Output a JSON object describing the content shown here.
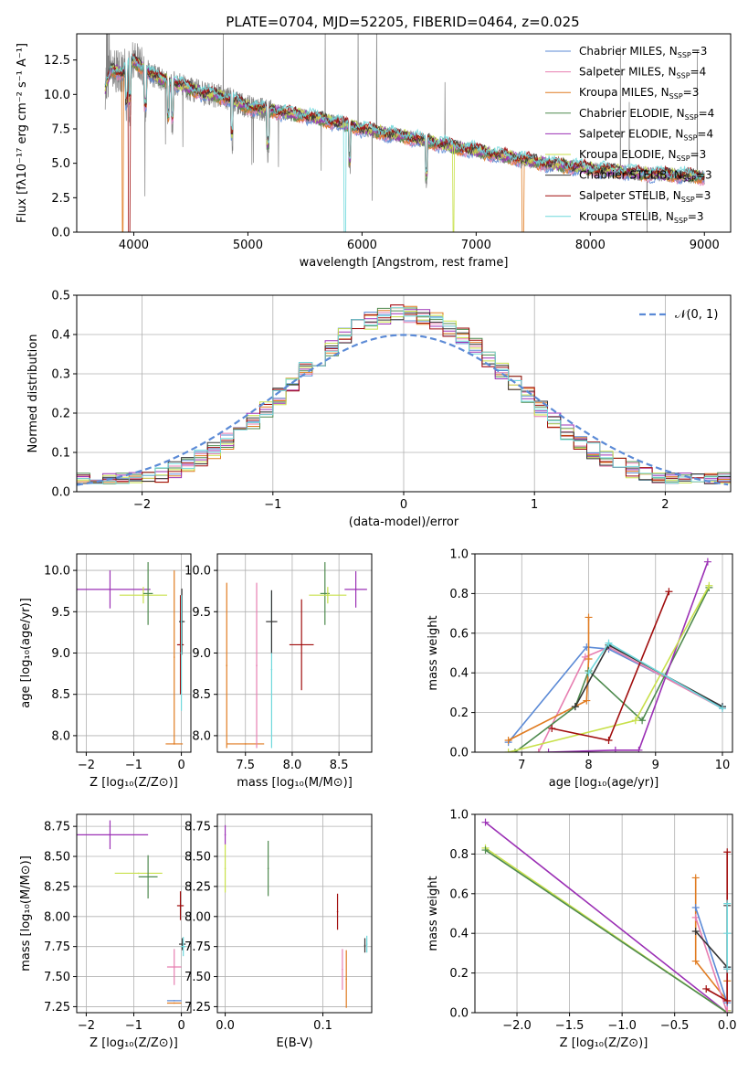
{
  "figure": {
    "title": "PLATE=0704, MJD=52205, FIBERID=0464, z=0.025"
  },
  "series_styles": [
    {
      "name": "Chabrier MILES, N$_{SSP}$=3",
      "color": "#5b8ad6"
    },
    {
      "name": "Salpeter MILES, N$_{SSP}$=4",
      "color": "#e77fb1"
    },
    {
      "name": "Kroupa MILES, N$_{SSP}$=3",
      "color": "#e07b20"
    },
    {
      "name": "Chabrier ELODIE, N$_{SSP}$=4",
      "color": "#4e8a4e"
    },
    {
      "name": "Salpeter ELODIE, N$_{SSP}$=4",
      "color": "#9b30b5"
    },
    {
      "name": "Kroupa ELODIE, N$_{SSP}$=3",
      "color": "#c8e04a"
    },
    {
      "name": "Chabrier STELIB, N$_{SSP}$=3",
      "color": "#333333"
    },
    {
      "name": "Salpeter STELIB, N$_{SSP}$=3",
      "color": "#a00d0d"
    },
    {
      "name": "Kroupa STELIB, N$_{SSP}$=3",
      "color": "#6fd8dc"
    }
  ],
  "legend_labels": [
    {
      "main": "Chabrier MILES, N",
      "sub": "SSP",
      "tail": "=3"
    },
    {
      "main": "Salpeter MILES, N",
      "sub": "SSP",
      "tail": "=4"
    },
    {
      "main": "Kroupa MILES, N",
      "sub": "SSP",
      "tail": "=3"
    },
    {
      "main": "Chabrier ELODIE, N",
      "sub": "SSP",
      "tail": "=4"
    },
    {
      "main": "Salpeter ELODIE, N",
      "sub": "SSP",
      "tail": "=4"
    },
    {
      "main": "Kroupa ELODIE, N",
      "sub": "SSP",
      "tail": "=3"
    },
    {
      "main": "Chabrier STELIB, N",
      "sub": "SSP",
      "tail": "=3"
    },
    {
      "main": "Salpeter STELIB, N",
      "sub": "SSP",
      "tail": "=3"
    },
    {
      "main": "Kroupa STELIB, N",
      "sub": "SSP",
      "tail": "=3"
    }
  ],
  "chart_data": [
    {
      "id": "spectrum",
      "type": "line",
      "title": "PLATE=0704, MJD=52205, FIBERID=0464, z=0.025",
      "xlabel": "wavelength [Angstrom, rest frame]",
      "ylabel": "Flux [fλ10⁻¹⁷ erg cm⁻² s⁻¹ A⁻¹]",
      "xlim": [
        3500,
        9230
      ],
      "ylim": [
        0,
        14.4
      ],
      "xticks": [
        4000,
        5000,
        6000,
        7000,
        8000,
        9000
      ],
      "yticks": [
        0.0,
        2.5,
        5.0,
        7.5,
        10.0,
        12.5
      ],
      "ytick_labels": [
        "0.0",
        "2.5",
        "5.0",
        "7.5",
        "10.0",
        "12.5"
      ],
      "legend": "top-right",
      "grid": false,
      "data_color": "#808080",
      "continuum_x": [
        3750,
        3800,
        3900,
        4000,
        4200,
        4400,
        4600,
        4800,
        5000,
        5300,
        5600,
        6000,
        6400,
        6800,
        7200,
        7600,
        8000,
        8400,
        8800,
        9000
      ],
      "continuum_y": [
        10.5,
        11.8,
        11.6,
        12.4,
        11.2,
        10.7,
        10.1,
        9.8,
        9.1,
        8.7,
        8.3,
        7.5,
        6.9,
        6.2,
        5.6,
        5.0,
        4.6,
        4.3,
        4.1,
        4.0
      ],
      "model_drops": [
        {
          "series": 2,
          "x": 3905
        },
        {
          "series": 7,
          "x": 3960
        },
        {
          "series": 8,
          "x": 5850
        },
        {
          "series": 5,
          "x": 6800
        },
        {
          "series": 2,
          "x": 7410
        }
      ]
    },
    {
      "id": "residuals",
      "type": "histogram",
      "xlabel": "(data-model)/error",
      "ylabel": "Normed distribution",
      "xlim": [
        -2.5,
        2.5
      ],
      "ylim": [
        0,
        0.5
      ],
      "xticks": [
        -2,
        -1,
        0,
        1,
        2
      ],
      "xtick_labels": [
        "−2",
        "−1",
        "0",
        "1",
        "2"
      ],
      "yticks": [
        0.0,
        0.1,
        0.2,
        0.3,
        0.4,
        0.5
      ],
      "ytick_labels": [
        "0.0",
        "0.1",
        "0.2",
        "0.3",
        "0.4",
        "0.5"
      ],
      "grid": true,
      "legend": "top-right",
      "reference": {
        "name": "𝒩(0, 1)",
        "mean": 0,
        "sigma": 1,
        "color": "#5b8ad6"
      },
      "bin_width": 0.1
    },
    {
      "id": "age_vs_z",
      "type": "scatter",
      "xlabel": "Z [log₁₀(Z/Z⊙)]",
      "ylabel": "age  [log₁₀(age/yr)]",
      "xlim": [
        -2.2,
        0.2
      ],
      "ylim": [
        7.8,
        10.2
      ],
      "xticks": [
        -2,
        -1,
        0
      ],
      "xtick_labels": [
        "−2",
        "−1",
        "0"
      ],
      "yticks": [
        8.0,
        8.5,
        9.0,
        9.5,
        10.0
      ],
      "ytick_labels": [
        "8.0",
        "8.5",
        "9.0",
        "9.5",
        "10.0"
      ],
      "grid": true,
      "points": [
        {
          "series": 4,
          "x": -1.5,
          "y": 9.77,
          "xerr": 0.85,
          "yerr": 0.23
        },
        {
          "series": 5,
          "x": -0.8,
          "y": 9.7,
          "xerr": 0.5,
          "yerr": 0.1
        },
        {
          "series": 3,
          "x": -0.7,
          "y": 9.72,
          "xerr": 0.1,
          "yerr": 0.38
        },
        {
          "series": 2,
          "x": -0.15,
          "y": 7.9,
          "xerr": 0.18,
          "yerr": 0.0
        },
        {
          "series": 2,
          "x": -0.15,
          "y": 8.95,
          "xerr": 0.0,
          "yerr": 1.05
        },
        {
          "series": 7,
          "x": -0.02,
          "y": 9.1,
          "xerr": 0.07,
          "yerr": 0.6
        },
        {
          "series": 6,
          "x": 0.01,
          "y": 9.38,
          "xerr": 0.06,
          "yerr": 0.4
        },
        {
          "series": 8,
          "x": 0.0,
          "y": 9.0,
          "xerr": 0.02,
          "yerr": 0.7
        }
      ]
    },
    {
      "id": "age_vs_mass",
      "type": "scatter",
      "xlabel": "mass [log₁₀(M/M⊙)]",
      "ylabel": "",
      "xlim": [
        7.2,
        8.85
      ],
      "ylim": [
        7.8,
        10.2
      ],
      "xticks": [
        7.5,
        8.0,
        8.5
      ],
      "xtick_labels": [
        "7.5",
        "8.0",
        "8.5"
      ],
      "yticks": [
        8.0,
        8.5,
        9.0,
        9.5,
        10.0
      ],
      "ytick_labels": [
        "8.0",
        "8.5",
        "9.0",
        "9.5",
        "10.0"
      ],
      "grid": true,
      "points": [
        {
          "series": 2,
          "x": 7.5,
          "y": 7.9,
          "xerr": 0.2,
          "yerr": 0.0
        },
        {
          "series": 2,
          "x": 7.3,
          "y": 8.85,
          "xerr": 0.0,
          "yerr": 1.0
        },
        {
          "series": 1,
          "x": 7.62,
          "y": 8.85,
          "xerr": 0.0,
          "yerr": 1.0
        },
        {
          "series": 8,
          "x": 7.78,
          "y": 8.8,
          "xerr": 0.0,
          "yerr": 0.95
        },
        {
          "series": 6,
          "x": 7.78,
          "y": 9.38,
          "xerr": 0.06,
          "yerr": 0.38
        },
        {
          "series": 7,
          "x": 8.1,
          "y": 9.1,
          "xerr": 0.13,
          "yerr": 0.55
        },
        {
          "series": 3,
          "x": 8.35,
          "y": 9.72,
          "xerr": 0.05,
          "yerr": 0.38
        },
        {
          "series": 5,
          "x": 8.38,
          "y": 9.7,
          "xerr": 0.2,
          "yerr": 0.1
        },
        {
          "series": 4,
          "x": 8.68,
          "y": 9.77,
          "xerr": 0.12,
          "yerr": 0.22
        }
      ]
    },
    {
      "id": "weight_vs_age",
      "type": "line",
      "xlabel": "age  [log₁₀(age/yr)]",
      "ylabel": "mass weight",
      "xlim": [
        6.3,
        10.15
      ],
      "ylim": [
        0,
        1.0
      ],
      "xticks": [
        7,
        8,
        9,
        10
      ],
      "xtick_labels": [
        "7",
        "8",
        "9",
        "10"
      ],
      "yticks": [
        0.0,
        0.2,
        0.4,
        0.6,
        0.8,
        1.0
      ],
      "ytick_labels": [
        "0.0",
        "0.2",
        "0.4",
        "0.6",
        "0.8",
        "1.0"
      ],
      "grid": true,
      "series": [
        {
          "series": 0,
          "x": [
            6.8,
            7.97,
            8.3,
            10.0
          ],
          "y": [
            0.05,
            0.53,
            0.52,
            0.23
          ]
        },
        {
          "series": 1,
          "x": [
            7.25,
            7.95,
            8.3,
            10.0
          ],
          "y": [
            0.0,
            0.48,
            0.53,
            0.22
          ]
        },
        {
          "series": 2,
          "x": [
            6.8,
            7.97,
            8.0,
            8.0
          ],
          "y": [
            0.06,
            0.26,
            0.47,
            0.68
          ]
        },
        {
          "series": 3,
          "x": [
            6.9,
            7.8,
            8.0,
            8.8,
            9.8
          ],
          "y": [
            0.0,
            0.23,
            0.41,
            0.16,
            0.83
          ]
        },
        {
          "series": 4,
          "x": [
            7.4,
            8.4,
            8.75,
            9.78
          ],
          "y": [
            0.0,
            0.01,
            0.01,
            0.96
          ]
        },
        {
          "series": 5,
          "x": [
            6.8,
            8.7,
            9.8
          ],
          "y": [
            0.0,
            0.16,
            0.84
          ]
        },
        {
          "series": 6,
          "x": [
            7.8,
            8.3,
            10.0
          ],
          "y": [
            0.23,
            0.54,
            0.23
          ]
        },
        {
          "series": 7,
          "x": [
            7.45,
            8.3,
            9.2
          ],
          "y": [
            0.12,
            0.06,
            0.81
          ]
        },
        {
          "series": 8,
          "x": [
            8.0,
            8.3,
            10.0
          ],
          "y": [
            0.4,
            0.55,
            0.22
          ]
        }
      ]
    },
    {
      "id": "mass_vs_z",
      "type": "scatter",
      "xlabel": "Z [log₁₀(Z/Z⊙)]",
      "ylabel": "mass [log₁₀(M/M⊙)]",
      "xlim": [
        -2.2,
        0.2
      ],
      "ylim": [
        7.2,
        8.85
      ],
      "xticks": [
        -2,
        -1,
        0
      ],
      "xtick_labels": [
        "−2",
        "−1",
        "0"
      ],
      "yticks": [
        7.25,
        7.5,
        7.75,
        8.0,
        8.25,
        8.5,
        8.75
      ],
      "ytick_labels": [
        "7.25",
        "7.50",
        "7.75",
        "8.00",
        "8.25",
        "8.50",
        "8.75"
      ],
      "grid": true,
      "points": [
        {
          "series": 4,
          "x": -1.5,
          "y": 8.68,
          "xerr": 0.8,
          "yerr": 0.12
        },
        {
          "series": 5,
          "x": -0.9,
          "y": 8.36,
          "xerr": 0.5,
          "yerr": 0.0
        },
        {
          "series": 3,
          "x": -0.7,
          "y": 8.33,
          "xerr": 0.2,
          "yerr": 0.18
        },
        {
          "series": 7,
          "x": -0.02,
          "y": 8.09,
          "xerr": 0.07,
          "yerr": 0.12
        },
        {
          "series": 6,
          "x": 0.02,
          "y": 7.77,
          "xerr": 0.07,
          "yerr": 0.05
        },
        {
          "series": 8,
          "x": 0.04,
          "y": 7.75,
          "xerr": 0.05,
          "yerr": 0.08
        },
        {
          "series": 1,
          "x": -0.15,
          "y": 7.58,
          "xerr": 0.15,
          "yerr": 0.15
        },
        {
          "series": 0,
          "x": -0.15,
          "y": 7.3,
          "xerr": 0.15,
          "yerr": 0.0
        },
        {
          "series": 2,
          "x": -0.15,
          "y": 7.28,
          "xerr": 0.15,
          "yerr": 0.0
        }
      ]
    },
    {
      "id": "mass_vs_ebv",
      "type": "scatter",
      "xlabel": "E(B-V)",
      "ylabel": "",
      "xlim": [
        -0.008,
        0.15
      ],
      "ylim": [
        7.2,
        8.85
      ],
      "xticks": [
        0.0,
        0.1
      ],
      "xtick_labels": [
        "0.0",
        "0.1"
      ],
      "yticks": [
        7.25,
        7.5,
        7.75,
        8.0,
        8.25,
        8.5,
        8.75
      ],
      "ytick_labels": [
        "7.25",
        "7.50",
        "7.75",
        "8.00",
        "8.25",
        "8.50",
        "8.75"
      ],
      "grid": true,
      "points": [
        {
          "series": 4,
          "x": 0.0,
          "y": 8.68,
          "xerr": 0.0,
          "yerr": 0.08
        },
        {
          "series": 5,
          "x": 0.0,
          "y": 8.4,
          "xerr": 0.0,
          "yerr": 0.2
        },
        {
          "series": 3,
          "x": 0.044,
          "y": 8.4,
          "xerr": 0.0,
          "yerr": 0.23
        },
        {
          "series": 7,
          "x": 0.115,
          "y": 8.04,
          "xerr": 0.0,
          "yerr": 0.15
        },
        {
          "series": 1,
          "x": 0.12,
          "y": 7.56,
          "xerr": 0.0,
          "yerr": 0.17
        },
        {
          "series": 2,
          "x": 0.124,
          "y": 7.48,
          "xerr": 0.0,
          "yerr": 0.24
        },
        {
          "series": 8,
          "x": 0.145,
          "y": 7.77,
          "xerr": 0.0,
          "yerr": 0.07
        },
        {
          "series": 6,
          "x": 0.143,
          "y": 7.76,
          "xerr": 0.0,
          "yerr": 0.06
        }
      ]
    },
    {
      "id": "weight_vs_z",
      "type": "line",
      "xlabel": "Z [log₁₀(Z/Z⊙)]",
      "ylabel": "mass weight",
      "xlim": [
        -2.4,
        0.05
      ],
      "ylim": [
        0,
        1.0
      ],
      "xticks": [
        -2.0,
        -1.5,
        -1.0,
        -0.5,
        0.0
      ],
      "xtick_labels": [
        "−2.0",
        "−1.5",
        "−1.0",
        "−0.5",
        "0.0"
      ],
      "yticks": [
        0.0,
        0.2,
        0.4,
        0.6,
        0.8,
        1.0
      ],
      "ytick_labels": [
        "0.0",
        "0.2",
        "0.4",
        "0.6",
        "0.8",
        "1.0"
      ],
      "grid": true,
      "series": [
        {
          "series": 4,
          "x": [
            -2.3,
            0.0,
            0.0
          ],
          "y": [
            0.96,
            0.0,
            0.01
          ]
        },
        {
          "series": 5,
          "x": [
            -2.3,
            0.0,
            0.0
          ],
          "y": [
            0.83,
            0.0,
            0.01
          ]
        },
        {
          "series": 3,
          "x": [
            -2.3,
            0.0
          ],
          "y": [
            0.82,
            0.0
          ]
        },
        {
          "series": 2,
          "x": [
            -0.3,
            -0.3,
            0.0,
            0.0
          ],
          "y": [
            0.68,
            0.26,
            0.06,
            0.16
          ]
        },
        {
          "series": 1,
          "x": [
            -0.3,
            0.0,
            0.0
          ],
          "y": [
            0.48,
            0.0,
            0.22
          ]
        },
        {
          "series": 0,
          "x": [
            -0.3,
            0.0,
            0.0
          ],
          "y": [
            0.53,
            0.05,
            0.23
          ]
        },
        {
          "series": 6,
          "x": [
            -0.3,
            0.0,
            0.0
          ],
          "y": [
            0.41,
            0.23,
            0.54
          ]
        },
        {
          "series": 7,
          "x": [
            -0.2,
            0.0,
            0.0
          ],
          "y": [
            0.12,
            0.06,
            0.81
          ]
        },
        {
          "series": 8,
          "x": [
            0.0,
            0.0,
            0.0
          ],
          "y": [
            0.22,
            0.55,
            0.4
          ]
        }
      ]
    }
  ]
}
